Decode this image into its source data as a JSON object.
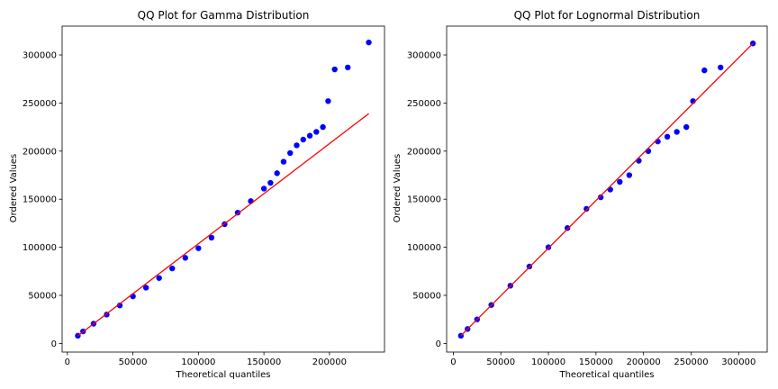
{
  "chart_data": [
    {
      "type": "scatter",
      "title": "QQ Plot for Gamma Distribution",
      "xlabel": "Theoretical quantiles",
      "ylabel": "Ordered Values",
      "xlim": [
        -4000,
        242000
      ],
      "ylim": [
        -9000,
        330000
      ],
      "xticks": [
        0,
        50000,
        100000,
        150000,
        200000
      ],
      "yticks": [
        0,
        50000,
        100000,
        150000,
        200000,
        250000,
        300000
      ],
      "xtick_labels": [
        "0",
        "50000",
        "100000",
        "150000",
        "200000"
      ],
      "ytick_labels": [
        "0",
        "50000",
        "100000",
        "150000",
        "200000",
        "250000",
        "300000"
      ],
      "grid": false,
      "series": [
        {
          "points": [
            [
              8000,
              8000
            ],
            [
              12000,
              12500
            ],
            [
              20000,
              20500
            ],
            [
              30000,
              30000
            ],
            [
              40000,
              39500
            ],
            [
              50000,
              49000
            ],
            [
              60000,
              58000
            ],
            [
              70000,
              68000
            ],
            [
              80000,
              78000
            ],
            [
              90000,
              89000
            ],
            [
              100000,
              99000
            ],
            [
              110000,
              110000
            ],
            [
              120000,
              124000
            ],
            [
              130000,
              136000
            ],
            [
              140000,
              148000
            ],
            [
              150000,
              161000
            ],
            [
              155000,
              167000
            ],
            [
              160000,
              177000
            ],
            [
              165000,
              189000
            ],
            [
              170000,
              198000
            ],
            [
              175000,
              206000
            ],
            [
              180000,
              212000
            ],
            [
              185000,
              216000
            ],
            [
              190000,
              220000
            ],
            [
              195000,
              225000
            ],
            [
              199000,
              252000
            ],
            [
              204000,
              285000
            ],
            [
              214000,
              287000
            ],
            [
              230000,
              313000
            ]
          ],
          "color": "#0000ff"
        }
      ],
      "fit_line": {
        "x": [
          8000,
          230000
        ],
        "y": [
          8000,
          239000
        ],
        "color": "#ff0000"
      }
    },
    {
      "type": "scatter",
      "title": "QQ Plot for Lognormal Distribution",
      "xlabel": "Theoretical quantiles",
      "ylabel": "Ordered Values",
      "xlim": [
        -7000,
        330000
      ],
      "ylim": [
        -9000,
        330000
      ],
      "xticks": [
        0,
        50000,
        100000,
        150000,
        200000,
        250000,
        300000
      ],
      "yticks": [
        0,
        50000,
        100000,
        150000,
        200000,
        250000,
        300000
      ],
      "xtick_labels": [
        "0",
        "50000",
        "100000",
        "150000",
        "200000",
        "250000",
        "300000"
      ],
      "ytick_labels": [
        "0",
        "50000",
        "100000",
        "150000",
        "200000",
        "250000",
        "300000"
      ],
      "grid": false,
      "series": [
        {
          "points": [
            [
              8000,
              8000
            ],
            [
              15000,
              15000
            ],
            [
              25000,
              25000
            ],
            [
              40000,
              40000
            ],
            [
              60000,
              60000
            ],
            [
              80000,
              80000
            ],
            [
              100000,
              100000
            ],
            [
              120000,
              120000
            ],
            [
              140000,
              140000
            ],
            [
              155000,
              152000
            ],
            [
              165000,
              160000
            ],
            [
              175000,
              168000
            ],
            [
              185000,
              175000
            ],
            [
              195000,
              190000
            ],
            [
              205000,
              200000
            ],
            [
              215000,
              210000
            ],
            [
              225000,
              215000
            ],
            [
              235000,
              220000
            ],
            [
              245000,
              225000
            ],
            [
              252000,
              252000
            ],
            [
              264000,
              284000
            ],
            [
              281000,
              287000
            ],
            [
              315000,
              312000
            ]
          ],
          "color": "#0000ff"
        }
      ],
      "fit_line": {
        "x": [
          8000,
          315000
        ],
        "y": [
          8000,
          312000
        ],
        "color": "#ff0000"
      }
    }
  ]
}
